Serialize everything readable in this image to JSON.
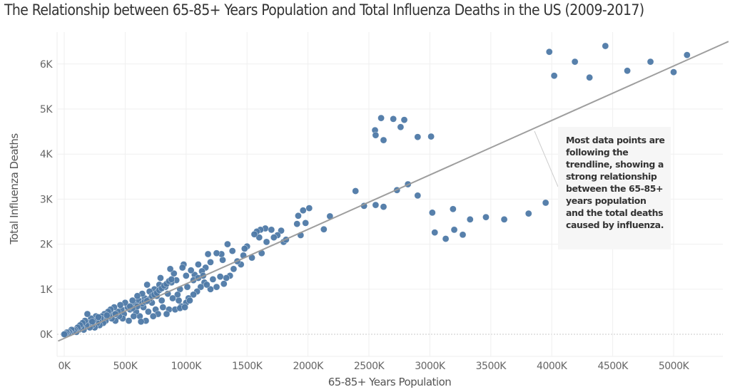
{
  "chart_data": {
    "type": "scatter",
    "title": "The Relationship between 65-85+ Years Population and Total Influenza Deaths in the US (2009-2017)",
    "xlabel": "65-85+ Years Population",
    "ylabel": "Total Influenza Deaths",
    "x_unit": "thousands",
    "y_unit": "thousands",
    "xlim": [
      -50,
      5450
    ],
    "ylim": [
      -0.5,
      6.9
    ],
    "x_ticks": [
      0,
      500,
      1000,
      1500,
      2000,
      2500,
      3000,
      3500,
      4000,
      4500,
      5000
    ],
    "x_tick_labels": [
      "0K",
      "500K",
      "1000K",
      "1500K",
      "2000K",
      "2500K",
      "3000K",
      "3500K",
      "4000K",
      "4500K",
      "5000K"
    ],
    "y_ticks": [
      0,
      1,
      2,
      3,
      4,
      5,
      6
    ],
    "y_tick_labels": [
      "0K",
      "1K",
      "2K",
      "3K",
      "4K",
      "5K",
      "6K"
    ],
    "grid": true,
    "legend": "none",
    "marker_color": "#4e79a7",
    "trendline": {
      "color": "#999999",
      "x": [
        -50,
        5450
      ],
      "y": [
        -0.15,
        6.5
      ]
    },
    "annotation": "Most data points are following the trendline, showing a strong relationship between the 65-85+ years population and the total deaths caused by influenza.",
    "points": [
      [
        3980,
        6.27
      ],
      [
        4020,
        5.74
      ],
      [
        4190,
        6.05
      ],
      [
        4310,
        5.7
      ],
      [
        4440,
        6.4
      ],
      [
        4620,
        5.85
      ],
      [
        4810,
        6.05
      ],
      [
        5000,
        5.82
      ],
      [
        5110,
        6.2
      ],
      [
        2550,
        4.53
      ],
      [
        2555,
        4.42
      ],
      [
        2600,
        4.8
      ],
      [
        2620,
        4.31
      ],
      [
        2700,
        4.78
      ],
      [
        2760,
        4.6
      ],
      [
        2790,
        4.76
      ],
      [
        2900,
        4.38
      ],
      [
        3010,
        4.39
      ],
      [
        2390,
        3.18
      ],
      [
        2460,
        2.85
      ],
      [
        2555,
        2.87
      ],
      [
        2620,
        2.83
      ],
      [
        2730,
        3.2
      ],
      [
        2820,
        3.33
      ],
      [
        2900,
        3.08
      ],
      [
        3020,
        2.7
      ],
      [
        3040,
        2.26
      ],
      [
        3130,
        2.12
      ],
      [
        3190,
        2.78
      ],
      [
        3200,
        2.32
      ],
      [
        3270,
        2.21
      ],
      [
        3330,
        2.55
      ],
      [
        3460,
        2.6
      ],
      [
        3610,
        2.55
      ],
      [
        3810,
        2.68
      ],
      [
        3950,
        2.92
      ],
      [
        2180,
        2.62
      ],
      [
        2130,
        2.33
      ],
      [
        2010,
        2.8
      ],
      [
        1960,
        2.75
      ],
      [
        1920,
        2.63
      ],
      [
        1980,
        2.47
      ],
      [
        1910,
        2.45
      ],
      [
        1940,
        2.2
      ],
      [
        1780,
        2.3
      ],
      [
        1800,
        2.05
      ],
      [
        1750,
        2.2
      ],
      [
        1650,
        2.35
      ],
      [
        1610,
        2.32
      ],
      [
        1700,
        2.32
      ],
      [
        1580,
        2.28
      ],
      [
        1600,
        2.15
      ],
      [
        1560,
        2.22
      ],
      [
        1720,
        2.15
      ],
      [
        1660,
        2.05
      ],
      [
        1820,
        2.1
      ],
      [
        1500,
        1.95
      ],
      [
        1480,
        1.9
      ],
      [
        1470,
        1.75
      ],
      [
        1450,
        1.55
      ],
      [
        1380,
        1.85
      ],
      [
        1340,
        2.0
      ],
      [
        1300,
        1.65
      ],
      [
        1290,
        1.78
      ],
      [
        1250,
        1.8
      ],
      [
        1200,
        1.6
      ],
      [
        1180,
        1.78
      ],
      [
        1160,
        1.48
      ],
      [
        1130,
        1.4
      ],
      [
        1100,
        1.55
      ],
      [
        1070,
        1.32
      ],
      [
        1060,
        1.2
      ],
      [
        1040,
        1.42
      ],
      [
        1000,
        1.3
      ],
      [
        980,
        1.55
      ],
      [
        970,
        1.48
      ],
      [
        1390,
        1.45
      ],
      [
        1360,
        1.3
      ],
      [
        1330,
        1.25
      ],
      [
        1310,
        1.12
      ],
      [
        1280,
        1.28
      ],
      [
        1250,
        1.05
      ],
      [
        1220,
        1.22
      ],
      [
        1200,
        1.0
      ],
      [
        1150,
        1.15
      ],
      [
        1120,
        1.05
      ],
      [
        1090,
        0.95
      ],
      [
        1060,
        0.88
      ],
      [
        1020,
        0.8
      ],
      [
        1000,
        0.7
      ],
      [
        960,
        0.62
      ],
      [
        940,
        0.75
      ],
      [
        920,
        1.2
      ],
      [
        900,
        1.35
      ],
      [
        880,
        1.15
      ],
      [
        870,
        1.45
      ],
      [
        850,
        0.9
      ],
      [
        830,
        1.05
      ],
      [
        810,
        0.6
      ],
      [
        800,
        0.75
      ],
      [
        790,
        1.25
      ],
      [
        780,
        1.1
      ],
      [
        760,
        0.85
      ],
      [
        750,
        0.55
      ],
      [
        740,
        1.0
      ],
      [
        720,
        0.7
      ],
      [
        700,
        0.95
      ],
      [
        690,
        0.5
      ],
      [
        680,
        1.1
      ],
      [
        660,
        0.8
      ],
      [
        650,
        0.6
      ],
      [
        640,
        0.9
      ],
      [
        620,
        0.4
      ],
      [
        610,
        0.75
      ],
      [
        600,
        0.85
      ],
      [
        590,
        0.5
      ],
      [
        580,
        0.65
      ],
      [
        570,
        0.4
      ],
      [
        560,
        0.75
      ],
      [
        540,
        0.55
      ],
      [
        530,
        0.3
      ],
      [
        520,
        0.6
      ],
      [
        500,
        0.7
      ],
      [
        490,
        0.45
      ],
      [
        480,
        0.35
      ],
      [
        470,
        0.55
      ],
      [
        460,
        0.65
      ],
      [
        450,
        0.4
      ],
      [
        440,
        0.5
      ],
      [
        420,
        0.3
      ],
      [
        410,
        0.6
      ],
      [
        400,
        0.45
      ],
      [
        390,
        0.35
      ],
      [
        380,
        0.55
      ],
      [
        370,
        0.4
      ],
      [
        360,
        0.5
      ],
      [
        340,
        0.3
      ],
      [
        330,
        0.45
      ],
      [
        320,
        0.25
      ],
      [
        310,
        0.4
      ],
      [
        300,
        0.35
      ],
      [
        290,
        0.2
      ],
      [
        280,
        0.3
      ],
      [
        270,
        0.25
      ],
      [
        260,
        0.4
      ],
      [
        250,
        0.15
      ],
      [
        240,
        0.3
      ],
      [
        230,
        0.2
      ],
      [
        220,
        0.35
      ],
      [
        210,
        0.15
      ],
      [
        200,
        0.25
      ],
      [
        190,
        0.45
      ],
      [
        180,
        0.2
      ],
      [
        170,
        0.3
      ],
      [
        160,
        0.1
      ],
      [
        150,
        0.25
      ],
      [
        140,
        0.15
      ],
      [
        130,
        0.2
      ],
      [
        120,
        0.1
      ],
      [
        110,
        0.15
      ],
      [
        100,
        0.05
      ],
      [
        90,
        0.1
      ],
      [
        80,
        0.08
      ],
      [
        70,
        0.05
      ],
      [
        60,
        0.1
      ],
      [
        50,
        0.03
      ],
      [
        40,
        0.05
      ],
      [
        30,
        0.02
      ],
      [
        20,
        0.04
      ],
      [
        10,
        0.01
      ],
      [
        0,
        0.0
      ],
      [
        860,
        0.55
      ],
      [
        910,
        0.55
      ],
      [
        950,
        0.58
      ],
      [
        990,
        0.6
      ],
      [
        1030,
        0.75
      ],
      [
        840,
        0.45
      ],
      [
        770,
        0.45
      ],
      [
        730,
        0.4
      ],
      [
        670,
        0.3
      ],
      [
        630,
        0.28
      ],
      [
        700,
        0.78
      ],
      [
        720,
        0.85
      ],
      [
        740,
        0.88
      ],
      [
        760,
        0.92
      ],
      [
        780,
        0.98
      ],
      [
        800,
        1.02
      ],
      [
        820,
        1.08
      ],
      [
        840,
        1.12
      ],
      [
        860,
        1.18
      ],
      [
        880,
        1.22
      ],
      [
        640,
        0.68
      ],
      [
        660,
        0.72
      ],
      [
        680,
        0.74
      ],
      [
        600,
        0.62
      ],
      [
        560,
        0.58
      ],
      [
        540,
        0.62
      ],
      [
        420,
        0.45
      ],
      [
        350,
        0.42
      ],
      [
        280,
        0.38
      ],
      [
        230,
        0.28
      ],
      [
        1420,
        1.62
      ],
      [
        1540,
        1.7
      ],
      [
        1620,
        1.8
      ],
      [
        1100,
        1.25
      ],
      [
        1140,
        1.3
      ],
      [
        1170,
        1.1
      ],
      [
        1010,
        1.05
      ],
      [
        950,
        1.0
      ],
      [
        930,
        0.88
      ],
      [
        890,
        0.8
      ]
    ]
  }
}
